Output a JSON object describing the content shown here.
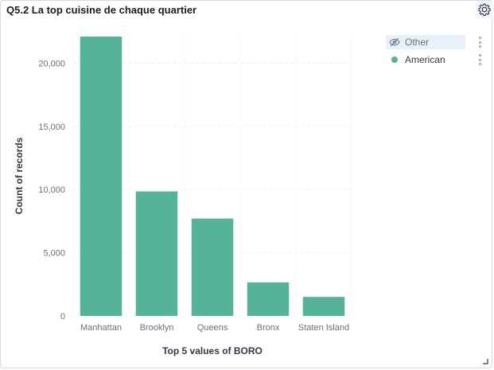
{
  "panel": {
    "title": "Q5.2 La top cuisine de chaque quartier",
    "settings_icon": "gear-icon"
  },
  "legend": {
    "items": [
      {
        "label": "Other",
        "hidden": true,
        "icon": "eye-closed-icon"
      },
      {
        "label": "American",
        "hidden": false,
        "color": "#54b399"
      }
    ]
  },
  "chart_data": {
    "type": "bar",
    "xlabel": "Top 5 values of BORO",
    "ylabel": "Count of records",
    "categories": [
      "Manhattan",
      "Brooklyn",
      "Queens",
      "Bronx",
      "Staten Island"
    ],
    "series": [
      {
        "name": "American",
        "color": "#54b399",
        "values": [
          22100,
          9850,
          7700,
          2650,
          1500
        ]
      }
    ],
    "yticks": [
      0,
      5000,
      10000,
      15000,
      20000
    ],
    "ytick_labels": [
      "0",
      "5,000",
      "10,000",
      "15,000",
      "20,000"
    ],
    "ylim": [
      0,
      22100
    ],
    "grid": true,
    "legend_position": "right"
  }
}
